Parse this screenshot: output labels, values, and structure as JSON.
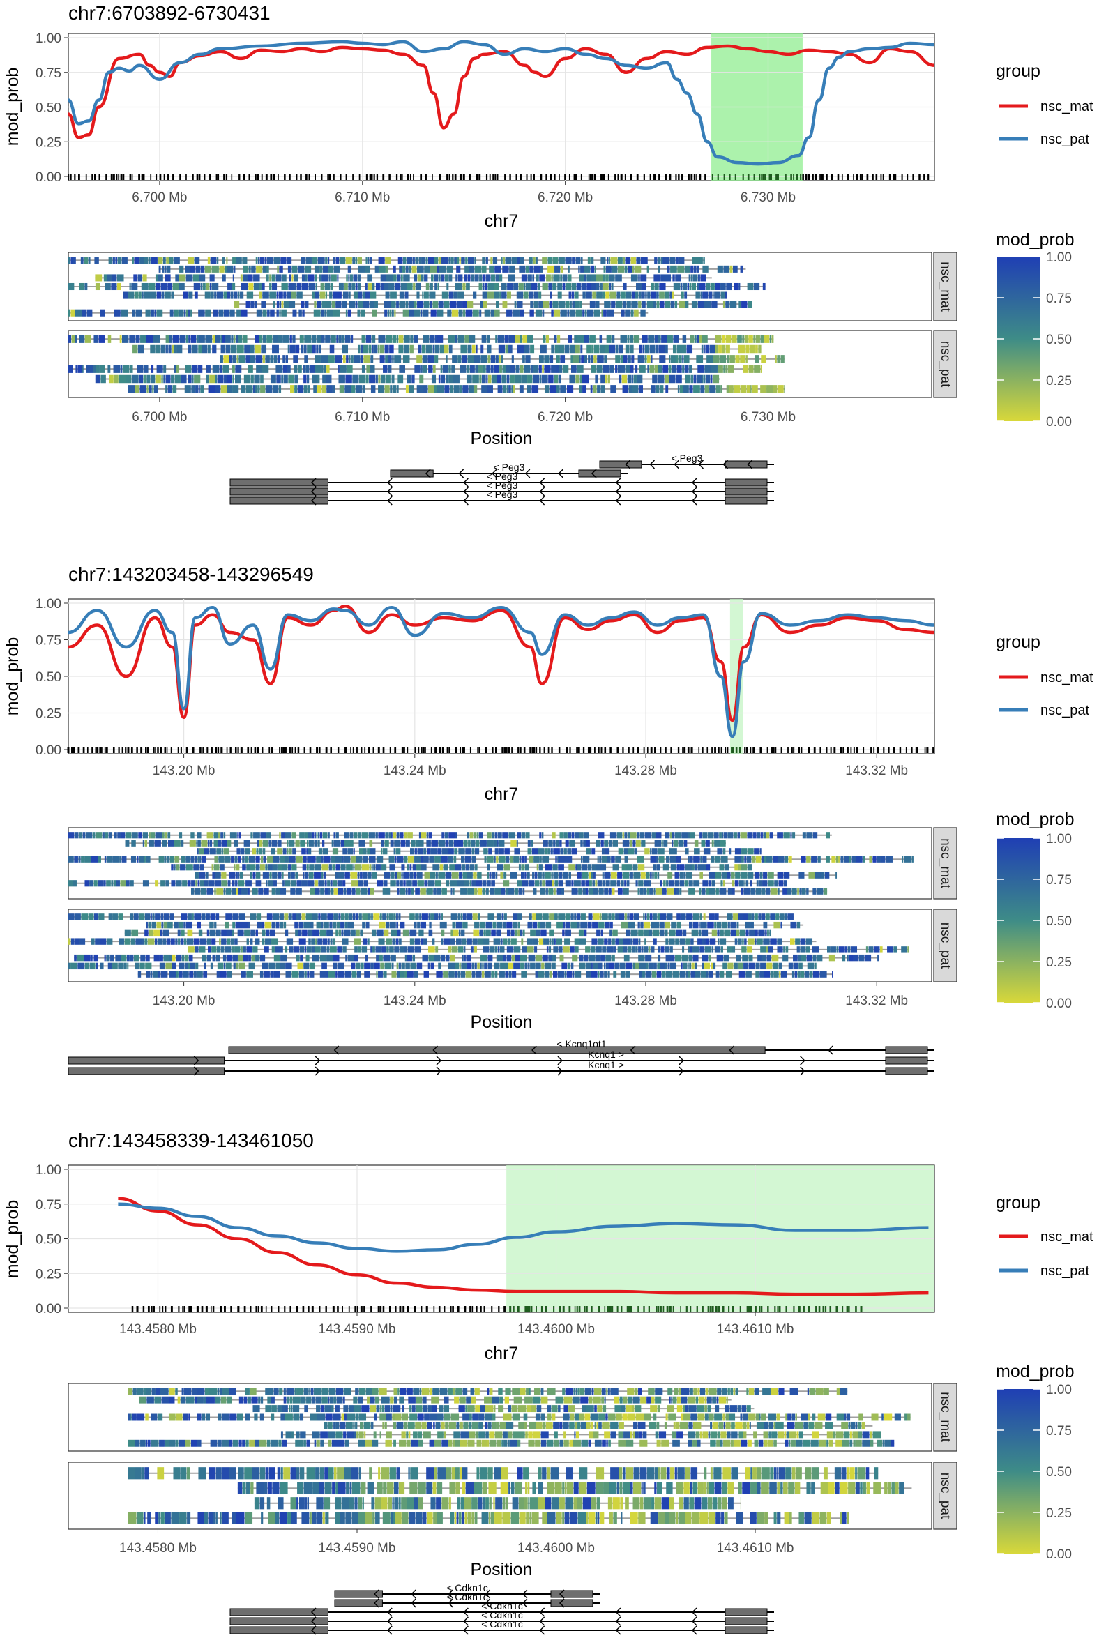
{
  "colors": {
    "nsc_mat": "#E41A1C",
    "nsc_pat": "#377EB8",
    "highlight_strong": "#90EE90",
    "highlight_light": "#C8F5C8",
    "scale_high": "#1F3FB4",
    "scale_mid": "#3E8C87",
    "scale_low": "#D8D83A",
    "gene_box": "#6E6E6E"
  },
  "common": {
    "y_label": "mod_prob",
    "x_label_line": "chr7",
    "x_label_heat": "Position",
    "legend_group_title": "group",
    "legend_group_items": [
      "nsc_mat",
      "nsc_pat"
    ],
    "legend_scale_title": "mod_prob",
    "legend_scale_ticks": [
      "1.00",
      "0.75",
      "0.50",
      "0.25",
      "0.00"
    ],
    "facet_labels": [
      "nsc_mat",
      "nsc_pat"
    ],
    "y_ticks": [
      "1.00",
      "0.75",
      "0.50",
      "0.25",
      "0.00"
    ]
  },
  "chart_data": [
    {
      "type": "line",
      "title": "chr7:6703892-6730431",
      "xlabel": "chr7",
      "ylabel": "mod_prob",
      "xlim_mb": [
        6.6955,
        6.7382
      ],
      "ylim": [
        0,
        1
      ],
      "x_ticks": [
        6.7,
        6.71,
        6.72,
        6.73
      ],
      "x_tick_labels": [
        "6.700 Mb",
        "6.710 Mb",
        "6.720 Mb",
        "6.730 Mb"
      ],
      "highlight_mb": [
        6.7272,
        6.7317
      ],
      "highlight_style": "strong",
      "series": [
        {
          "name": "nsc_mat",
          "x": [
            6.6955,
            6.696,
            6.6965,
            6.697,
            6.698,
            6.699,
            6.6995,
            6.7,
            6.7005,
            6.701,
            6.702,
            6.703,
            6.704,
            6.705,
            6.706,
            6.707,
            6.708,
            6.709,
            6.71,
            6.711,
            6.712,
            6.713,
            6.7135,
            6.714,
            6.7145,
            6.715,
            6.7155,
            6.716,
            6.717,
            6.718,
            6.7185,
            6.719,
            6.72,
            6.721,
            6.722,
            6.723,
            6.724,
            6.725,
            6.726,
            6.727,
            6.728,
            6.729,
            6.73,
            6.731,
            6.732,
            6.733,
            6.734,
            6.735,
            6.736,
            6.737,
            6.7382
          ],
          "values": [
            0.45,
            0.28,
            0.3,
            0.5,
            0.85,
            0.88,
            0.8,
            0.75,
            0.72,
            0.82,
            0.87,
            0.9,
            0.85,
            0.91,
            0.9,
            0.92,
            0.9,
            0.93,
            0.92,
            0.91,
            0.88,
            0.8,
            0.6,
            0.35,
            0.45,
            0.72,
            0.85,
            0.88,
            0.9,
            0.8,
            0.75,
            0.72,
            0.85,
            0.92,
            0.88,
            0.75,
            0.85,
            0.9,
            0.88,
            0.93,
            0.94,
            0.92,
            0.9,
            0.88,
            0.91,
            0.9,
            0.88,
            0.82,
            0.92,
            0.9,
            0.8
          ]
        },
        {
          "name": "nsc_pat",
          "x": [
            6.6955,
            6.696,
            6.6965,
            6.697,
            6.6975,
            6.698,
            6.6985,
            6.699,
            6.7,
            6.701,
            6.702,
            6.703,
            6.705,
            6.707,
            6.709,
            6.71,
            6.711,
            6.712,
            6.713,
            6.714,
            6.715,
            6.716,
            6.717,
            6.718,
            6.719,
            6.72,
            6.721,
            6.722,
            6.723,
            6.724,
            6.725,
            6.7255,
            6.726,
            6.7265,
            6.727,
            6.7275,
            6.7285,
            6.7295,
            6.7305,
            6.7315,
            6.732,
            6.7325,
            6.733,
            6.7335,
            6.734,
            6.735,
            6.736,
            6.737,
            6.7382
          ],
          "values": [
            0.55,
            0.38,
            0.4,
            0.55,
            0.75,
            0.78,
            0.76,
            0.8,
            0.7,
            0.82,
            0.88,
            0.92,
            0.94,
            0.96,
            0.97,
            0.96,
            0.95,
            0.97,
            0.9,
            0.92,
            0.97,
            0.95,
            0.88,
            0.92,
            0.9,
            0.92,
            0.88,
            0.85,
            0.8,
            0.78,
            0.82,
            0.7,
            0.6,
            0.45,
            0.25,
            0.14,
            0.1,
            0.09,
            0.1,
            0.15,
            0.28,
            0.55,
            0.78,
            0.86,
            0.9,
            0.92,
            0.93,
            0.96,
            0.95
          ]
        }
      ],
      "genes": {
        "labels": [
          "< Peg3",
          "< Peg3",
          "< Peg3",
          "< Peg3",
          "< Peg3"
        ],
        "xlim_mb": [
          6.6955,
          6.7382
        ]
      },
      "heatmap_rows": {
        "nsc_mat": 7,
        "nsc_pat": 6
      },
      "heat_extent_mb": [
        6.6955,
        6.732
      ]
    },
    {
      "type": "line",
      "title": "chr7:143203458-143296549",
      "xlabel": "chr7",
      "ylabel": "mod_prob",
      "xlim_mb": [
        143.18,
        143.33
      ],
      "ylim": [
        0,
        1
      ],
      "x_ticks": [
        143.2,
        143.24,
        143.28,
        143.32
      ],
      "x_tick_labels": [
        "143.20 Mb",
        "143.24 Mb",
        "143.28 Mb",
        "143.32 Mb"
      ],
      "highlight_mb": [
        143.2946,
        143.2968
      ],
      "highlight_style": "light",
      "series": [
        {
          "name": "nsc_mat",
          "x": [
            143.18,
            143.185,
            143.19,
            143.195,
            143.198,
            143.2,
            143.202,
            143.205,
            143.208,
            143.212,
            143.215,
            143.218,
            143.222,
            143.226,
            143.228,
            143.232,
            143.236,
            143.24,
            143.245,
            143.25,
            143.255,
            143.26,
            143.262,
            143.266,
            143.27,
            143.274,
            143.278,
            143.282,
            143.286,
            143.29,
            143.293,
            143.295,
            143.297,
            143.3,
            143.305,
            143.31,
            143.315,
            143.32,
            143.325,
            143.33
          ],
          "values": [
            0.7,
            0.85,
            0.5,
            0.9,
            0.7,
            0.22,
            0.85,
            0.92,
            0.8,
            0.75,
            0.45,
            0.9,
            0.85,
            0.95,
            0.98,
            0.8,
            0.92,
            0.85,
            0.9,
            0.88,
            0.95,
            0.7,
            0.45,
            0.9,
            0.82,
            0.88,
            0.92,
            0.8,
            0.88,
            0.9,
            0.6,
            0.2,
            0.7,
            0.92,
            0.8,
            0.85,
            0.9,
            0.88,
            0.82,
            0.8
          ]
        },
        {
          "name": "nsc_pat",
          "x": [
            143.18,
            143.185,
            143.19,
            143.195,
            143.198,
            143.2,
            143.202,
            143.205,
            143.208,
            143.212,
            143.215,
            143.218,
            143.222,
            143.226,
            143.228,
            143.232,
            143.236,
            143.24,
            143.245,
            143.25,
            143.255,
            143.26,
            143.262,
            143.266,
            143.27,
            143.274,
            143.278,
            143.282,
            143.286,
            143.29,
            143.293,
            143.295,
            143.297,
            143.3,
            143.305,
            143.31,
            143.315,
            143.32,
            143.325,
            143.33
          ],
          "values": [
            0.8,
            0.95,
            0.7,
            0.95,
            0.8,
            0.28,
            0.9,
            0.97,
            0.72,
            0.85,
            0.55,
            0.92,
            0.88,
            0.96,
            0.95,
            0.85,
            0.97,
            0.78,
            0.93,
            0.9,
            0.97,
            0.8,
            0.65,
            0.92,
            0.85,
            0.9,
            0.94,
            0.85,
            0.9,
            0.92,
            0.5,
            0.09,
            0.6,
            0.93,
            0.85,
            0.88,
            0.92,
            0.9,
            0.88,
            0.85
          ]
        }
      ],
      "genes": {
        "labels": [
          "< Kcnq1ot1",
          "Kcnq1 >",
          "Kcnq1 >"
        ],
        "xlim_mb": [
          143.18,
          143.33
        ]
      },
      "heatmap_rows": {
        "nsc_mat": 8,
        "nsc_pat": 8
      },
      "heat_extent_mb": [
        143.18,
        143.33
      ]
    },
    {
      "type": "line",
      "title": "chr7:143458339-143461050",
      "xlabel": "chr7",
      "ylabel": "mod_prob",
      "xlim_mb": [
        143.45755,
        143.4619
      ],
      "ylim": [
        0,
        1
      ],
      "x_ticks": [
        143.458,
        143.459,
        143.46,
        143.461
      ],
      "x_tick_labels": [
        "143.4580 Mb",
        "143.4590 Mb",
        "143.4600 Mb",
        "143.4610 Mb"
      ],
      "highlight_mb": [
        143.45975,
        143.4619
      ],
      "highlight_style": "light",
      "series": [
        {
          "name": "nsc_mat",
          "x": [
            143.4578,
            143.458,
            143.4582,
            143.4584,
            143.4586,
            143.4588,
            143.459,
            143.4592,
            143.4594,
            143.4596,
            143.4598,
            143.46,
            143.4603,
            143.4606,
            143.4609,
            143.4612,
            143.4615,
            143.46187
          ],
          "values": [
            0.79,
            0.7,
            0.6,
            0.5,
            0.4,
            0.31,
            0.24,
            0.18,
            0.15,
            0.13,
            0.12,
            0.12,
            0.12,
            0.11,
            0.11,
            0.1,
            0.1,
            0.11
          ]
        },
        {
          "name": "nsc_pat",
          "x": [
            143.4578,
            143.458,
            143.4582,
            143.4584,
            143.4586,
            143.4588,
            143.459,
            143.4592,
            143.4594,
            143.4596,
            143.4598,
            143.46,
            143.4603,
            143.4606,
            143.4609,
            143.4612,
            143.4615,
            143.46187
          ],
          "values": [
            0.75,
            0.72,
            0.66,
            0.58,
            0.52,
            0.47,
            0.43,
            0.41,
            0.42,
            0.46,
            0.51,
            0.55,
            0.59,
            0.61,
            0.6,
            0.56,
            0.56,
            0.58
          ]
        }
      ],
      "genes": {
        "labels": [
          "< Cdkn1c",
          "< Cdkn1c",
          "< Cdkn1c",
          "< Cdkn1c",
          "< Cdkn1c"
        ],
        "xlim_mb": [
          143.45755,
          143.4619
        ]
      },
      "heatmap_rows": {
        "nsc_mat": 7,
        "nsc_pat": 4
      },
      "heat_extent_mb": [
        143.45785,
        143.46185
      ]
    }
  ]
}
